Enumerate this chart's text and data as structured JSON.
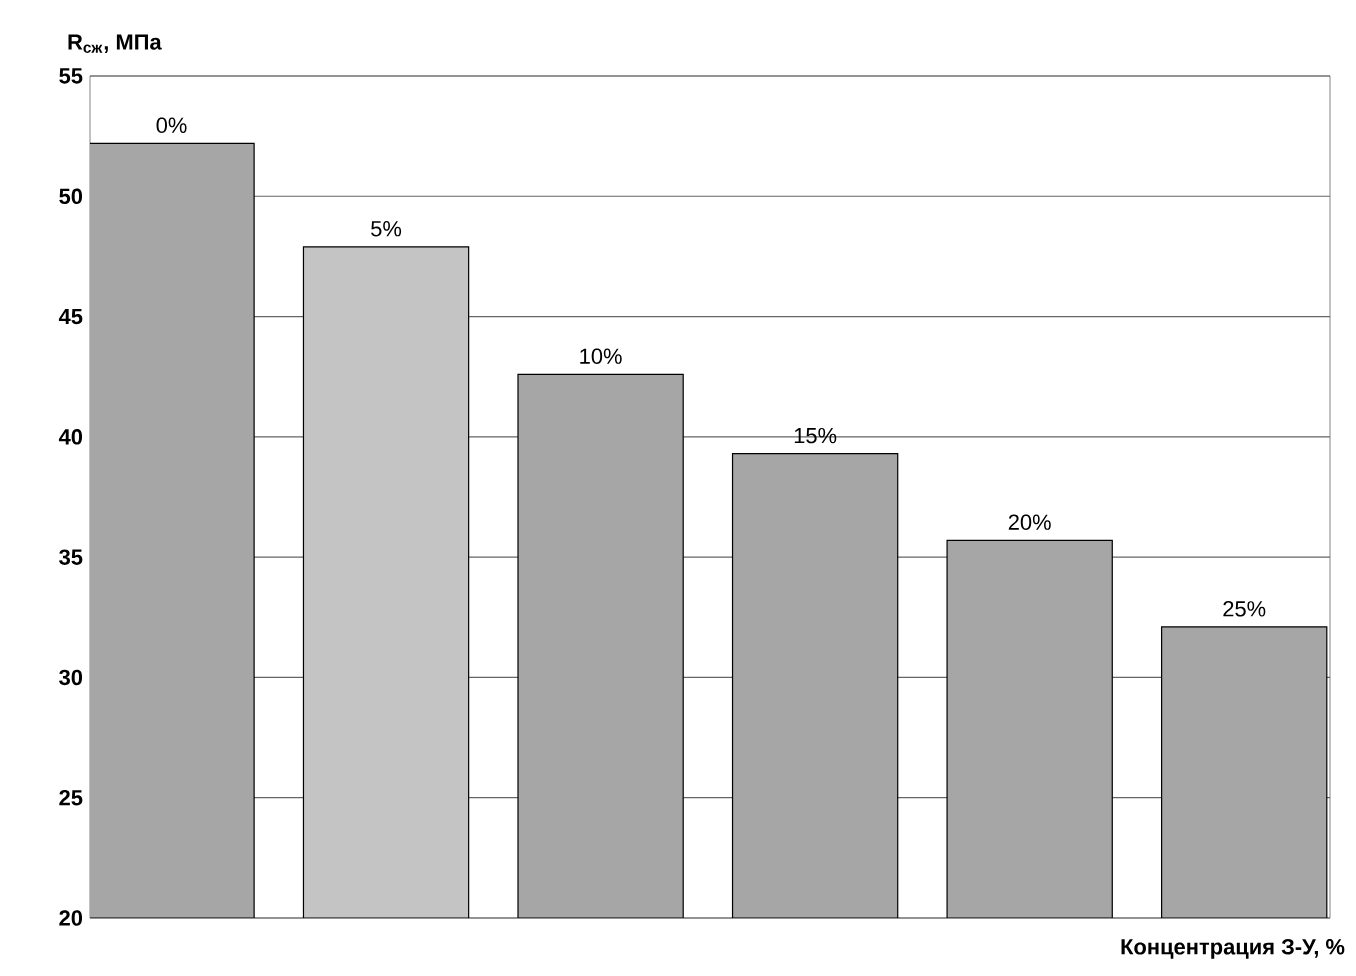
{
  "chart_data": {
    "type": "bar",
    "xlabel": "Концентрация З-У, %",
    "ylabel": "R$_{сж}$, МПа",
    "categories": [
      "0%",
      "5%",
      "10%",
      "15%",
      "20%",
      "25%"
    ],
    "values": [
      52.2,
      47.9,
      42.6,
      39.3,
      35.7,
      32.1
    ],
    "colors": [
      "#a6a6a6",
      "#c4c4c4",
      "#a6a6a6",
      "#a6a6a6",
      "#a6a6a6",
      "#a6a6a6"
    ],
    "ylim": [
      20,
      55
    ],
    "yticks": [
      20,
      25,
      30,
      35,
      40,
      45,
      50,
      55
    ],
    "grid": "y",
    "tick_labels": "y"
  }
}
